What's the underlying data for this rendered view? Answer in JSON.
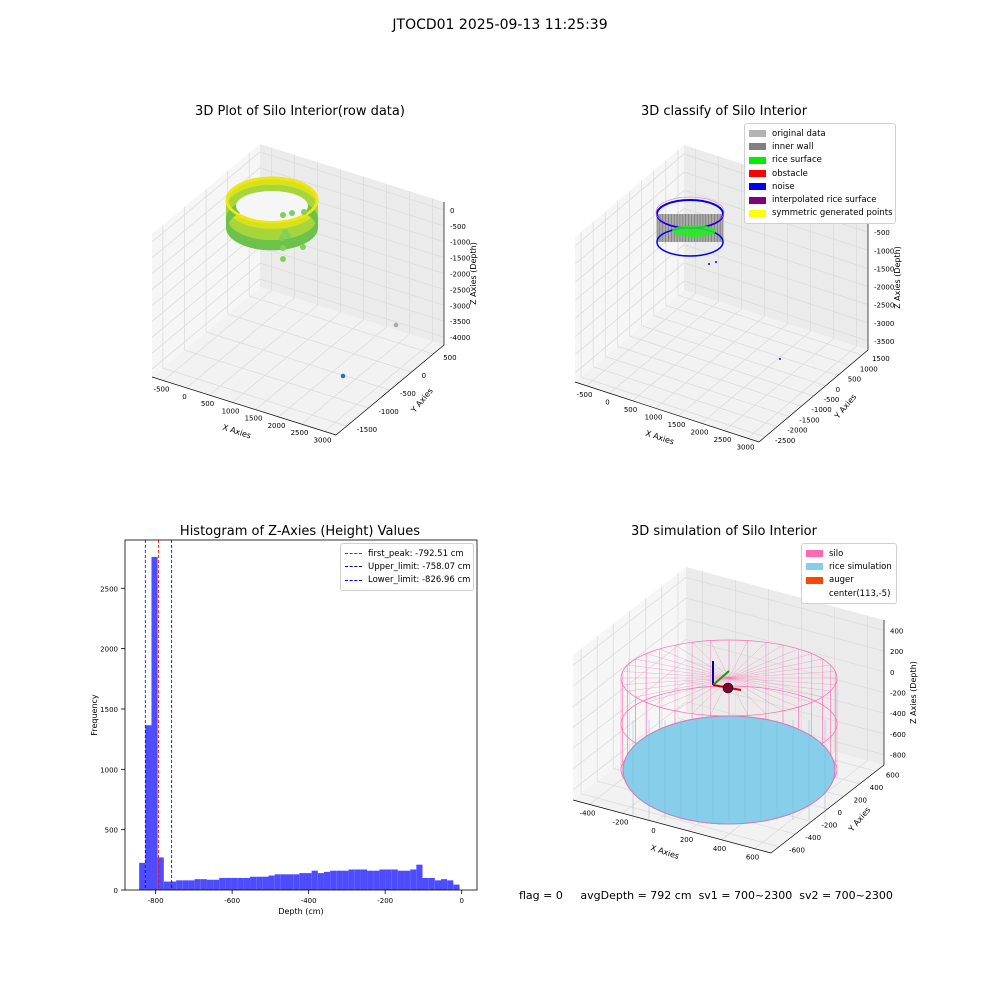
{
  "page": {
    "suptitle": "JTOCD01 2025-09-13 11:25:39"
  },
  "panels": {
    "raw": {
      "title": "3D Plot of Silo Interior(row data)",
      "x_label": "X Axies",
      "y_label": "Y Axies",
      "z_label": "Z Axies (Depth)",
      "x_ticks": [
        "-500",
        "0",
        "500",
        "1000",
        "1500",
        "2000",
        "2500",
        "3000"
      ],
      "y_ticks": [
        "500",
        "0",
        "-500",
        "-1000",
        "-1500"
      ],
      "z_ticks": [
        "0",
        "-500",
        "-1000",
        "-1500",
        "-2000",
        "-2500",
        "-3000",
        "-3500",
        "-4000"
      ]
    },
    "classify": {
      "title": "3D classify of Silo Interior",
      "x_label": "X Axies",
      "y_label": "Y Axies",
      "z_label": "Z Axies (Depth)",
      "x_ticks": [
        "-500",
        "0",
        "500",
        "1000",
        "1500",
        "2000",
        "2500",
        "3000"
      ],
      "y_ticks": [
        "1500",
        "1000",
        "500",
        "0",
        "-500",
        "-1000",
        "-1500",
        "-2000",
        "-2500"
      ],
      "z_ticks": [
        "0",
        "-500",
        "-1000",
        "-1500",
        "-2000",
        "-2500",
        "-3000",
        "-3500"
      ],
      "legend": [
        {
          "label": "original data",
          "color": "#b3b3b3"
        },
        {
          "label": "inner wall",
          "color": "#808080"
        },
        {
          "label": "rice surface",
          "color": "#00ee00"
        },
        {
          "label": "obstacle",
          "color": "#ff0000"
        },
        {
          "label": "noise",
          "color": "#0000ee"
        },
        {
          "label": "interpolated rice surface",
          "color": "#800080"
        },
        {
          "label": "symmetric generated points",
          "color": "#ffff00"
        }
      ]
    },
    "histogram": {
      "title": "Histogram of Z-Axies (Height) Values",
      "legend": [
        {
          "label": "first_peak: -792.51 cm",
          "color": "#ff0000"
        },
        {
          "label": "Upper_limit: -758.07 cm",
          "color": "#00008b"
        },
        {
          "label": "Lower_limit: -826.96 cm",
          "color": "#0000ff"
        }
      ]
    },
    "simulation": {
      "title": "3D simulation of Silo Interior",
      "x_label": "X Axies",
      "y_label": "Y Axies",
      "z_label": "Z Axies (Depth)",
      "x_ticks": [
        "-400",
        "-200",
        "0",
        "200",
        "400",
        "600"
      ],
      "y_ticks": [
        "600",
        "400",
        "200",
        "0",
        "-200",
        "-400",
        "-600"
      ],
      "z_ticks": [
        "400",
        "200",
        "0",
        "-200",
        "-400",
        "-600",
        "-800"
      ],
      "legend": [
        {
          "label": "silo",
          "color": "#ff69b4"
        },
        {
          "label": "rice simulation",
          "color": "#87ceeb"
        },
        {
          "label": "auger",
          "color": "#ff4500"
        },
        {
          "label": "center(113,-5)",
          "color": "#ffffff"
        }
      ]
    }
  },
  "footer": {
    "flag": "flag = 0",
    "avg_depth": "avgDepth = 792 cm",
    "sv1": "sv1 = 700~2300",
    "sv2": "sv2 = 700~2300"
  },
  "chart_data": {
    "type": "bar",
    "title": "Histogram of Z-Axies (Height) Values",
    "xlabel": "Depth (cm)",
    "ylabel": "Frequency",
    "xlim": [
      -880,
      40
    ],
    "ylim": [
      0,
      2900
    ],
    "x_ticks": [
      -800,
      -600,
      -400,
      -200,
      0
    ],
    "y_ticks": [
      0,
      500,
      1000,
      1500,
      2000,
      2500
    ],
    "bin_edges": [
      -843,
      -826.9,
      -810.8,
      -794.7,
      -778.6,
      -762.5,
      -746.4,
      -730.3,
      -714.2,
      -698.1,
      -682,
      -665.9,
      -649.8,
      -633.7,
      -617.6,
      -601.5,
      -585.4,
      -569.3,
      -553.2,
      -537.1,
      -521,
      -504.9,
      -488.8,
      -472.7,
      -456.6,
      -440.5,
      -424.4,
      -408.3,
      -392.2,
      -376.1,
      -360,
      -343.9,
      -327.8,
      -311.7,
      -295.6,
      -279.5,
      -263.4,
      -247.3,
      -231.2,
      -215.1,
      -199,
      -182.9,
      -166.8,
      -150.7,
      -134.6,
      -118.5,
      -102.4,
      -86.3,
      -70.2,
      -54.1,
      -38,
      -21.9,
      -5.8
    ],
    "values": [
      225,
      1365,
      2760,
      270,
      70,
      70,
      80,
      80,
      80,
      90,
      90,
      85,
      85,
      100,
      100,
      100,
      100,
      100,
      110,
      110,
      110,
      120,
      130,
      130,
      130,
      130,
      140,
      140,
      160,
      140,
      150,
      160,
      160,
      160,
      170,
      170,
      170,
      160,
      160,
      170,
      170,
      170,
      160,
      160,
      170,
      210,
      100,
      100,
      80,
      90,
      80,
      45
    ],
    "vlines": [
      {
        "name": "first_peak",
        "x": -792.51,
        "color": "#ff0000"
      },
      {
        "name": "Upper_limit",
        "x": -758.07,
        "color": "#00008b"
      },
      {
        "name": "Lower_limit",
        "x": -826.96,
        "color": "#0000ff"
      }
    ],
    "bar_color": "#4d4dff"
  }
}
